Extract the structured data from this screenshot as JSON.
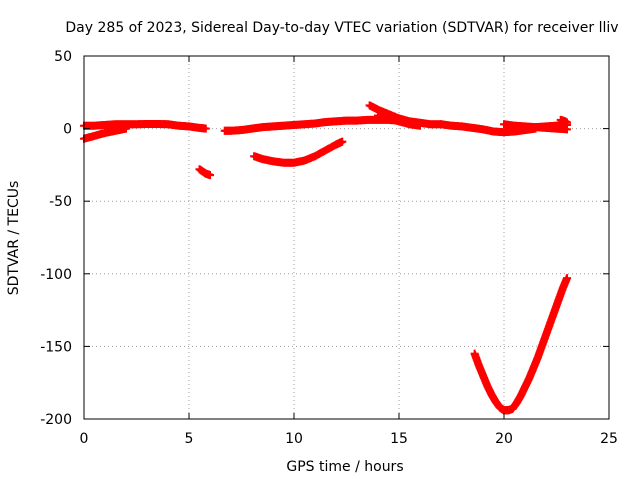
{
  "chart_data": {
    "type": "scatter",
    "title": "Day 285 of 2023, Sidereal Day-to-day VTEC variation (SDTVAR) for receiver lliv",
    "xlabel": "GPS time / hours",
    "ylabel": "SDTVAR / TECUs",
    "xlim": [
      0,
      25
    ],
    "ylim": [
      -200,
      50
    ],
    "xticks": [
      0,
      5,
      10,
      15,
      20,
      25
    ],
    "yticks": [
      -200,
      -150,
      -100,
      -50,
      0,
      50
    ],
    "xtick_labels": [
      "0",
      "5",
      "10",
      "15",
      "20",
      "25"
    ],
    "ytick_labels": [
      "-200",
      "-150",
      "-100",
      "-50",
      "0",
      "50"
    ],
    "grid": true,
    "marker": "plus",
    "series_color": "#ff0000",
    "series": [
      {
        "points": [
          [
            0.0,
            2
          ],
          [
            0.5,
            2
          ],
          [
            1.0,
            2.5
          ],
          [
            1.5,
            3
          ],
          [
            2.0,
            3
          ],
          [
            2.5,
            3
          ],
          [
            3.0,
            3.2
          ],
          [
            3.5,
            3.2
          ],
          [
            4.0,
            3
          ],
          [
            4.5,
            2
          ],
          [
            5.0,
            1.5
          ],
          [
            5.5,
            0.5
          ],
          [
            5.8,
            0
          ]
        ]
      },
      {
        "points": [
          [
            0.0,
            -7
          ],
          [
            0.5,
            -5
          ],
          [
            1.0,
            -3
          ],
          [
            1.5,
            -1.5
          ],
          [
            2.0,
            0
          ]
        ]
      },
      {
        "points": [
          [
            5.5,
            -28
          ],
          [
            5.8,
            -31
          ],
          [
            6.0,
            -32
          ]
        ]
      },
      {
        "points": [
          [
            6.7,
            -1.5
          ],
          [
            7.0,
            -1.5
          ],
          [
            7.5,
            -1
          ],
          [
            8.0,
            0
          ],
          [
            8.5,
            1
          ],
          [
            9.0,
            1.5
          ],
          [
            9.5,
            2
          ],
          [
            10.0,
            2.5
          ],
          [
            10.5,
            3
          ],
          [
            11.0,
            3.5
          ],
          [
            11.5,
            4.5
          ],
          [
            12.0,
            5
          ],
          [
            12.5,
            5.5
          ],
          [
            13.0,
            5.5
          ],
          [
            13.5,
            6
          ],
          [
            14.0,
            6
          ],
          [
            14.5,
            6
          ],
          [
            15.0,
            5.5
          ]
        ]
      },
      {
        "points": [
          [
            8.1,
            -19
          ],
          [
            8.5,
            -21
          ],
          [
            9.0,
            -22.5
          ],
          [
            9.5,
            -23.5
          ],
          [
            10.0,
            -23.5
          ],
          [
            10.5,
            -22
          ],
          [
            11.0,
            -19
          ],
          [
            11.5,
            -15
          ],
          [
            12.0,
            -11
          ],
          [
            12.3,
            -9
          ]
        ]
      },
      {
        "points": [
          [
            13.6,
            16
          ],
          [
            14.0,
            13
          ],
          [
            14.5,
            10
          ],
          [
            15.0,
            7
          ],
          [
            15.5,
            5
          ],
          [
            16.0,
            4
          ],
          [
            16.5,
            3
          ],
          [
            17.0,
            3
          ]
        ]
      },
      {
        "points": [
          [
            14.0,
            9
          ],
          [
            14.5,
            7
          ],
          [
            15.0,
            5
          ],
          [
            15.5,
            3
          ],
          [
            16.0,
            2
          ]
        ]
      },
      {
        "points": [
          [
            17.0,
            3
          ],
          [
            17.5,
            2
          ],
          [
            18.0,
            1.5
          ],
          [
            18.5,
            0.5
          ],
          [
            19.0,
            -0.5
          ],
          [
            19.5,
            -2
          ],
          [
            20.0,
            -2.5
          ],
          [
            20.5,
            -2
          ],
          [
            21.0,
            -1
          ],
          [
            21.5,
            0
          ]
        ]
      },
      {
        "points": [
          [
            20.0,
            3
          ],
          [
            20.5,
            2
          ],
          [
            21.0,
            1.5
          ],
          [
            21.5,
            1
          ],
          [
            22.0,
            0.5
          ],
          [
            22.5,
            0
          ],
          [
            23.0,
            -0.5
          ]
        ]
      },
      {
        "points": [
          [
            20.5,
            -1
          ],
          [
            21.0,
            0
          ],
          [
            21.5,
            1
          ],
          [
            22.0,
            1.5
          ],
          [
            22.5,
            2
          ],
          [
            23.0,
            2.5
          ]
        ]
      },
      {
        "points": [
          [
            22.7,
            6
          ],
          [
            22.9,
            5
          ],
          [
            23.0,
            4
          ]
        ]
      },
      {
        "points": [
          [
            18.6,
            -155
          ],
          [
            18.8,
            -163
          ],
          [
            19.0,
            -170
          ],
          [
            19.2,
            -177
          ],
          [
            19.4,
            -183
          ],
          [
            19.6,
            -188
          ],
          [
            19.8,
            -192
          ],
          [
            20.0,
            -194
          ],
          [
            20.2,
            -194
          ],
          [
            20.4,
            -193
          ],
          [
            20.6,
            -189
          ],
          [
            20.8,
            -184
          ],
          [
            21.0,
            -178
          ],
          [
            21.2,
            -172
          ],
          [
            21.4,
            -165
          ],
          [
            21.6,
            -158
          ],
          [
            21.8,
            -150
          ],
          [
            22.0,
            -142
          ],
          [
            22.2,
            -134
          ],
          [
            22.4,
            -126
          ],
          [
            22.6,
            -118
          ],
          [
            22.8,
            -110
          ],
          [
            23.0,
            -103
          ]
        ]
      }
    ]
  }
}
